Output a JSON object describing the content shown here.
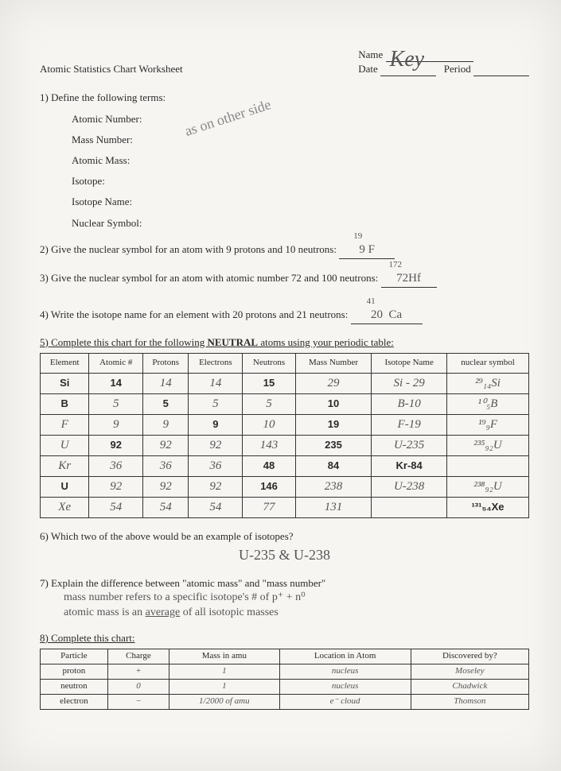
{
  "header": {
    "title": "Atomic Statistics Chart Worksheet",
    "name_label": "Name",
    "date_label": "Date",
    "period_label": "Period",
    "name_value": "Key"
  },
  "q1": {
    "prompt": "1) Define the following terms:",
    "terms": [
      "Atomic Number:",
      "Mass Number:",
      "Atomic Mass:",
      "Isotope:",
      "Isotope Name:",
      "Nuclear Symbol:"
    ],
    "side_note": "as on other side"
  },
  "q2": {
    "prompt": "2) Give the nuclear symbol for an atom with 9 protons and 10 neutrons:",
    "sup": "19",
    "sub": "9",
    "sym": "F"
  },
  "q3": {
    "prompt": "3) Give the nuclear symbol for an atom with atomic number 72 and 100 neutrons:",
    "sup": "172",
    "sub": "72",
    "sym": "Hf"
  },
  "q4": {
    "prompt": "4) Write the isotope name for an element with 20 protons and 21 neutrons:",
    "sup": "41",
    "sub": "20",
    "sym": "Ca"
  },
  "q5": {
    "prompt_a": "5)  Complete this chart for the following ",
    "prompt_b": "NEUTRAL",
    "prompt_c": " atoms using your periodic table:",
    "columns": [
      "Element",
      "Atomic #",
      "Protons",
      "Electrons",
      "Neutrons",
      "Mass Number",
      "Isotope Name",
      "nuclear symbol"
    ],
    "rows": [
      {
        "cells": [
          "Si",
          "14",
          "14",
          "14",
          "15",
          "29",
          "Si - 29",
          "²⁹₁₄Si"
        ],
        "printed": [
          0,
          1,
          4
        ],
        "hw": [
          2,
          3,
          5,
          6,
          7
        ]
      },
      {
        "cells": [
          "B",
          "5",
          "5",
          "5",
          "5",
          "10",
          "B-10",
          "¹⁰₅B"
        ],
        "printed": [
          0,
          2,
          5
        ],
        "hw": [
          1,
          3,
          4,
          6,
          7
        ]
      },
      {
        "cells": [
          "F",
          "9",
          "9",
          "9",
          "10",
          "19",
          "F-19",
          "¹⁹₉F"
        ],
        "printed": [
          3,
          5
        ],
        "hw": [
          0,
          1,
          2,
          4,
          6,
          7
        ]
      },
      {
        "cells": [
          "U",
          "92",
          "92",
          "92",
          "143",
          "235",
          "U-235",
          "²³⁵₉₂U"
        ],
        "printed": [
          1,
          5
        ],
        "hw": [
          0,
          2,
          3,
          4,
          6,
          7
        ]
      },
      {
        "cells": [
          "Kr",
          "36",
          "36",
          "36",
          "48",
          "84",
          "Kr-84",
          ""
        ],
        "printed": [
          4,
          5,
          6
        ],
        "hw": [
          0,
          1,
          2,
          3,
          7
        ]
      },
      {
        "cells": [
          "U",
          "92",
          "92",
          "92",
          "146",
          "238",
          "U-238",
          "²³⁸₉₂U"
        ],
        "printed": [
          0,
          4
        ],
        "hw": [
          1,
          2,
          3,
          5,
          6,
          7
        ]
      },
      {
        "cells": [
          "Xe",
          "54",
          "54",
          "54",
          "77",
          "131",
          "",
          "¹³¹₅₄Xe"
        ],
        "printed": [
          7
        ],
        "hw": [
          0,
          1,
          2,
          3,
          4,
          5,
          6
        ]
      }
    ]
  },
  "q6": {
    "prompt": "6)  Which two of the above would be an example of isotopes?",
    "answer": "U-235  &  U-238"
  },
  "q7": {
    "prompt": "7)  Explain the difference between \"atomic mass\" and \"mass number\"",
    "answer_l1": "mass number refers to a specific isotope's # of p⁺ + n⁰",
    "answer_l2_a": "atomic mass is an ",
    "answer_l2_b": "average",
    "answer_l2_c": " of all isotopic masses"
  },
  "q8": {
    "prompt": "8) Complete this chart:",
    "columns": [
      "Particle",
      "Charge",
      "Mass in amu",
      "Location in Atom",
      "Discovered by?"
    ],
    "rows": [
      [
        "proton",
        "+",
        "1",
        "nucleus",
        "Moseley"
      ],
      [
        "neutron",
        "0",
        "1",
        "nucleus",
        "Chadwick"
      ],
      [
        "electron",
        "−",
        "1/2000 of amu",
        "e⁻ cloud",
        "Thomson"
      ]
    ]
  }
}
